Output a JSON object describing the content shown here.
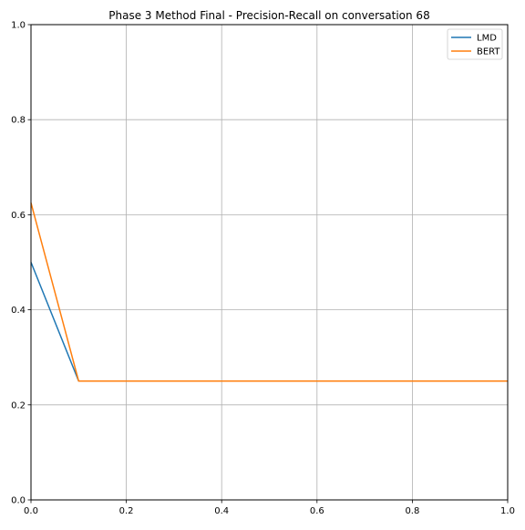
{
  "chart_data": {
    "type": "line",
    "title": "Phase 3 Method Final - Precision-Recall on conversation 68",
    "xlabel": "",
    "ylabel": "",
    "xlim": [
      0.0,
      1.0
    ],
    "ylim": [
      0.0,
      1.0
    ],
    "xticks": [
      "0.0",
      "0.2",
      "0.4",
      "0.6",
      "0.8",
      "1.0"
    ],
    "yticks": [
      "0.0",
      "0.2",
      "0.4",
      "0.6",
      "0.8",
      "1.0"
    ],
    "xtick_values": [
      0.0,
      0.2,
      0.4,
      0.6,
      0.8,
      1.0
    ],
    "ytick_values": [
      0.0,
      0.2,
      0.4,
      0.6,
      0.8,
      1.0
    ],
    "grid": true,
    "legend_position": "top-right",
    "series": [
      {
        "name": "LMD",
        "color": "#1f77b4",
        "x": [
          0.0,
          0.1,
          0.2,
          0.3,
          0.4,
          0.5,
          0.6,
          0.7,
          0.8,
          0.9,
          1.0
        ],
        "y": [
          0.5,
          0.25,
          0.25,
          0.25,
          0.25,
          0.25,
          0.25,
          0.25,
          0.25,
          0.25,
          0.25
        ]
      },
      {
        "name": "BERT",
        "color": "#ff7f0e",
        "x": [
          0.0,
          0.1,
          0.2,
          0.3,
          0.4,
          0.5,
          0.6,
          0.7,
          0.8,
          0.9,
          1.0
        ],
        "y": [
          0.625,
          0.25,
          0.25,
          0.25,
          0.25,
          0.25,
          0.25,
          0.25,
          0.25,
          0.25,
          0.25
        ]
      }
    ]
  }
}
